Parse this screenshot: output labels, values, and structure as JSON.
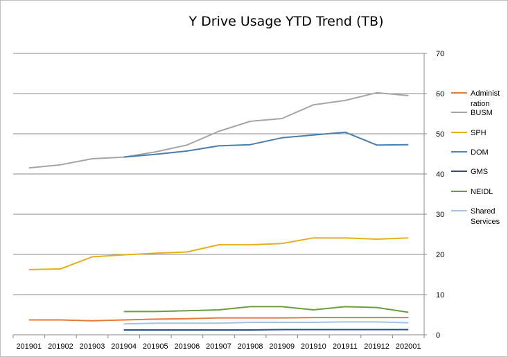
{
  "chart_data": {
    "type": "line",
    "title": "Y Drive Usage YTD Trend (TB)",
    "xlabel": "",
    "ylabel": "",
    "ylim": [
      0,
      70
    ],
    "yticks": [
      0,
      10,
      20,
      30,
      40,
      50,
      60,
      70
    ],
    "y_axis_side": "right",
    "grid": true,
    "legend_position": "right",
    "categories": [
      "201901",
      "201902",
      "201903",
      "201904",
      "201905",
      "201906",
      "201907",
      "201908",
      "201909",
      "201910",
      "201911",
      "201912",
      "202001"
    ],
    "series": [
      {
        "name": "Administration",
        "legend_lines": [
          "Administ",
          "ration"
        ],
        "color": "#E07B39",
        "values": [
          3.7,
          3.7,
          3.5,
          3.7,
          3.9,
          4.0,
          4.2,
          4.2,
          4.2,
          4.3,
          4.3,
          4.3,
          4.3
        ]
      },
      {
        "name": "BUSM",
        "legend_lines": [
          "BUSM"
        ],
        "color": "#A5A5A5",
        "values": [
          41.5,
          42.3,
          43.8,
          44.2,
          45.5,
          47.2,
          50.6,
          53.1,
          53.8,
          57.2,
          58.3,
          60.2,
          59.5
        ]
      },
      {
        "name": "SPH",
        "legend_lines": [
          "SPH"
        ],
        "color": "#E5AE1C",
        "values": [
          16.2,
          16.4,
          19.4,
          19.9,
          20.3,
          20.6,
          22.4,
          22.4,
          22.7,
          24.1,
          24.1,
          23.8,
          24.1
        ]
      },
      {
        "name": "DOM",
        "legend_lines": [
          "DOM"
        ],
        "color": "#4A7EAD",
        "values": [
          null,
          null,
          null,
          44.2,
          44.9,
          45.7,
          47.0,
          47.3,
          49.0,
          49.7,
          50.4,
          47.2,
          47.3
        ]
      },
      {
        "name": "GMS",
        "legend_lines": [
          "GMS"
        ],
        "color": "#2B4F8A",
        "values": [
          null,
          null,
          null,
          1.2,
          1.2,
          1.2,
          1.2,
          1.2,
          1.3,
          1.3,
          1.3,
          1.3,
          1.3
        ]
      },
      {
        "name": "NEIDL",
        "legend_lines": [
          "NEIDL"
        ],
        "color": "#6A9E3C",
        "values": [
          null,
          null,
          null,
          5.8,
          5.8,
          6.0,
          6.2,
          7.0,
          7.0,
          6.2,
          7.0,
          6.8,
          5.6
        ]
      },
      {
        "name": "Shared Services",
        "legend_lines": [
          "Shared",
          "Services"
        ],
        "color": "#9DC3E6",
        "values": [
          null,
          null,
          null,
          2.7,
          2.9,
          2.9,
          2.9,
          3.1,
          3.1,
          3.1,
          3.2,
          3.2,
          3.0
        ]
      }
    ]
  }
}
